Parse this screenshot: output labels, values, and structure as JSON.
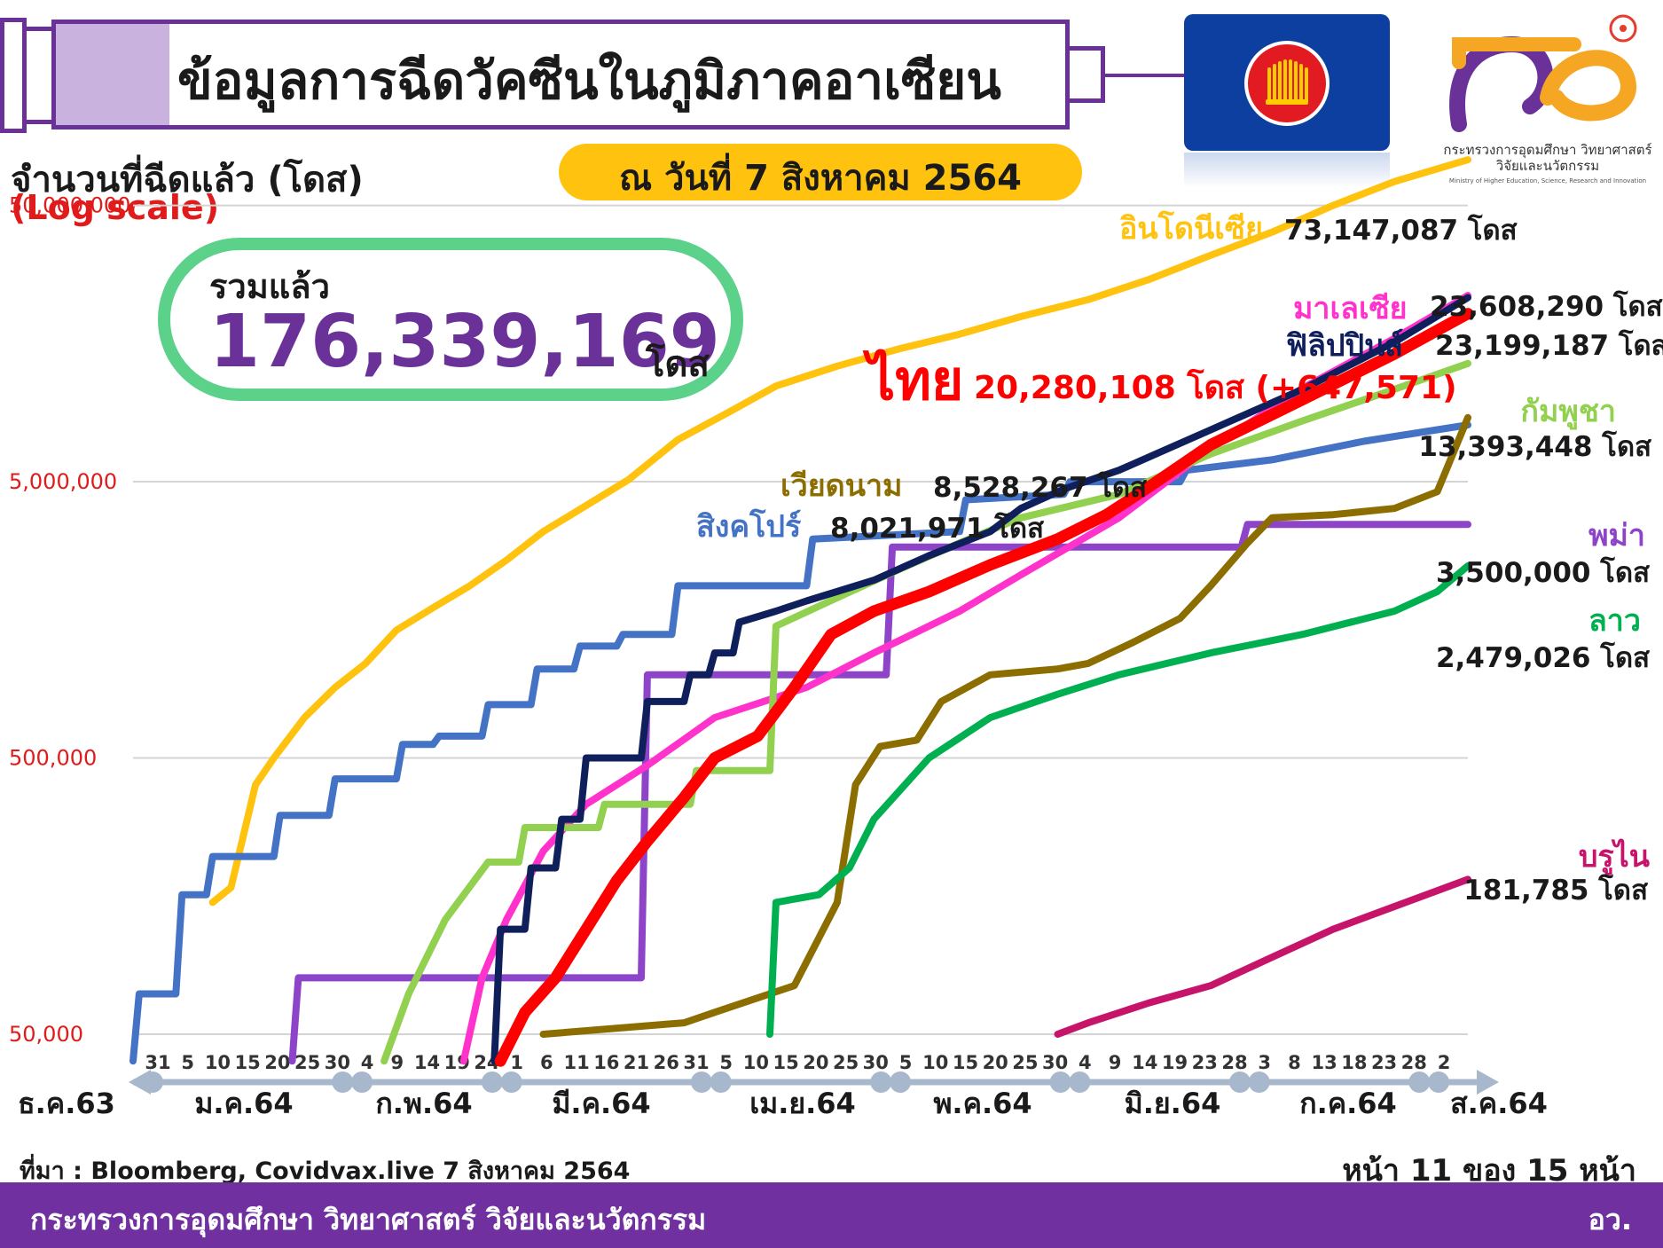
{
  "header": {
    "title": "ข้อมูลการฉีดวัคซีนในภูมิภาคอาเซียน",
    "date": "ณ วันที่ 7 สิงหาคม 2564"
  },
  "logo": {
    "ministry_th": "กระทรวงการอุดมศึกษา วิทยาศาสตร์ วิจัยและนวัตกรรม",
    "ministry_en": "Ministry of Higher Education, Science, Research and Innovation"
  },
  "total": {
    "label": "รวมแล้ว",
    "value": "176,339,169",
    "unit": "โดส"
  },
  "chart_data": {
    "type": "line",
    "ylabel": "จำนวนที่ฉีดแล้ว (โดส)",
    "yscale_label": "(Log scale)",
    "yscale": "log",
    "ylim": [
      50000,
      80000000
    ],
    "yticks": [
      {
        "value": 50000,
        "label": "50,000"
      },
      {
        "value": 500000,
        "label": "500,000"
      },
      {
        "value": 5000000,
        "label": "5,000,000"
      },
      {
        "value": 50000000,
        "label": "50,000,000"
      }
    ],
    "grid": true,
    "x_start": "2020-12-31",
    "x_end": "2021-08-06",
    "x_day_ticks": [
      "31",
      "5",
      "10",
      "15",
      "20",
      "25",
      "30",
      "4",
      "9",
      "14",
      "19",
      "24",
      "1",
      "6",
      "11",
      "16",
      "21",
      "26",
      "31",
      "5",
      "10",
      "15",
      "20",
      "25",
      "30",
      "5",
      "10",
      "15",
      "20",
      "25",
      "30",
      "4",
      "9",
      "14",
      "19",
      "23",
      "28",
      "3",
      "8",
      "13",
      "18",
      "23",
      "28",
      "2"
    ],
    "x_month_labels": [
      "ธ.ค.63",
      "ม.ค.64",
      "ก.พ.64",
      "มี.ค.64",
      "เม.ย.64",
      "พ.ค.64",
      "มิ.ย.64",
      "ก.ค.64",
      "ส.ค.64"
    ],
    "series": [
      {
        "name": "อินโดนีเซีย",
        "value_label": "73,147,087 โดส",
        "color": "#ffc20e",
        "points": [
          [
            "2021-01-13",
            150000
          ],
          [
            "2021-01-16",
            170000
          ],
          [
            "2021-01-20",
            400000
          ],
          [
            "2021-01-23",
            500000
          ],
          [
            "2021-01-28",
            700000
          ],
          [
            "2021-02-02",
            900000
          ],
          [
            "2021-02-07",
            1100000
          ],
          [
            "2021-02-12",
            1450000
          ],
          [
            "2021-02-18",
            1750000
          ],
          [
            "2021-02-24",
            2100000
          ],
          [
            "2021-03-02",
            2600000
          ],
          [
            "2021-03-08",
            3300000
          ],
          [
            "2021-03-15",
            4100000
          ],
          [
            "2021-03-22",
            5100000
          ],
          [
            "2021-03-30",
            7100000
          ],
          [
            "2021-04-08",
            9100000
          ],
          [
            "2021-04-15",
            11100000
          ],
          [
            "2021-04-25",
            13100000
          ],
          [
            "2021-05-05",
            15100000
          ],
          [
            "2021-05-15",
            17100000
          ],
          [
            "2021-05-25",
            19800000
          ],
          [
            "2021-06-05",
            22800000
          ],
          [
            "2021-06-15",
            27000000
          ],
          [
            "2021-06-25",
            33000000
          ],
          [
            "2021-07-05",
            40000000
          ],
          [
            "2021-07-15",
            50000000
          ],
          [
            "2021-07-25",
            61000000
          ],
          [
            "2021-08-06",
            73147087
          ]
        ]
      },
      {
        "name": "สิงคโปร์",
        "value_label": "8,021,971 โดส",
        "color": "#4472c4",
        "points": [
          [
            "2020-12-31",
            40000
          ],
          [
            "2021-01-01",
            70000
          ],
          [
            "2021-01-07",
            70000
          ],
          [
            "2021-01-08",
            160000
          ],
          [
            "2021-01-12",
            160000
          ],
          [
            "2021-01-13",
            220000
          ],
          [
            "2021-01-23",
            220000
          ],
          [
            "2021-01-24",
            310000
          ],
          [
            "2021-02-01",
            310000
          ],
          [
            "2021-02-02",
            420000
          ],
          [
            "2021-02-12",
            420000
          ],
          [
            "2021-02-13",
            560000
          ],
          [
            "2021-02-18",
            560000
          ],
          [
            "2021-02-19",
            600000
          ],
          [
            "2021-02-26",
            600000
          ],
          [
            "2021-02-27",
            780000
          ],
          [
            "2021-03-06",
            780000
          ],
          [
            "2021-03-07",
            1050000
          ],
          [
            "2021-03-13",
            1050000
          ],
          [
            "2021-03-14",
            1270000
          ],
          [
            "2021-03-20",
            1270000
          ],
          [
            "2021-03-21",
            1400000
          ],
          [
            "2021-03-29",
            1400000
          ],
          [
            "2021-03-30",
            2100000
          ],
          [
            "2021-04-20",
            2100000
          ],
          [
            "2021-04-21",
            3100000
          ],
          [
            "2021-05-15",
            3300000
          ],
          [
            "2021-05-16",
            4300000
          ],
          [
            "2021-06-01",
            4500000
          ],
          [
            "2021-06-02",
            5000000
          ],
          [
            "2021-06-20",
            5000000
          ],
          [
            "2021-06-21",
            5500000
          ],
          [
            "2021-07-05",
            6000000
          ],
          [
            "2021-07-20",
            7000000
          ],
          [
            "2021-08-06",
            8021971
          ]
        ]
      },
      {
        "name": "พม่า",
        "value_label": "3,500,000 โดส",
        "color": "#8e44c8",
        "points": [
          [
            "2021-01-26",
            40000
          ],
          [
            "2021-01-27",
            80000
          ],
          [
            "2021-03-24",
            80000
          ],
          [
            "2021-03-25",
            1000000
          ],
          [
            "2021-05-03",
            1000000
          ],
          [
            "2021-05-04",
            2900000
          ],
          [
            "2021-06-30",
            2900000
          ],
          [
            "2021-07-01",
            3500000
          ],
          [
            "2021-08-06",
            3500000
          ]
        ]
      },
      {
        "name": "มาเลเซีย",
        "value_label": "23,608,290 โดส",
        "color": "#ff33cc",
        "points": [
          [
            "2021-02-23",
            40000
          ],
          [
            "2021-02-26",
            80000
          ],
          [
            "2021-03-02",
            130000
          ],
          [
            "2021-03-08",
            230000
          ],
          [
            "2021-03-15",
            340000
          ],
          [
            "2021-03-25",
            470000
          ],
          [
            "2021-04-05",
            700000
          ],
          [
            "2021-04-20",
            900000
          ],
          [
            "2021-05-01",
            1200000
          ],
          [
            "2021-05-15",
            1700000
          ],
          [
            "2021-05-25",
            2300000
          ],
          [
            "2021-06-10",
            3700000
          ],
          [
            "2021-06-25",
            6600000
          ],
          [
            "2021-07-10",
            10900000
          ],
          [
            "2021-07-25",
            16500000
          ],
          [
            "2021-08-06",
            23608290
          ]
        ]
      },
      {
        "name": "กัมพูชา",
        "value_label": "13,393,448 โดส",
        "color": "#92d050",
        "points": [
          [
            "2021-02-10",
            40000
          ],
          [
            "2021-02-14",
            70000
          ],
          [
            "2021-02-20",
            130000
          ],
          [
            "2021-02-27",
            210000
          ],
          [
            "2021-03-04",
            210000
          ],
          [
            "2021-03-05",
            280000
          ],
          [
            "2021-03-17",
            280000
          ],
          [
            "2021-03-18",
            340000
          ],
          [
            "2021-04-01",
            340000
          ],
          [
            "2021-04-02",
            450000
          ],
          [
            "2021-04-14",
            450000
          ],
          [
            "2021-04-15",
            1500000
          ],
          [
            "2021-04-25",
            1900000
          ],
          [
            "2021-05-05",
            2400000
          ],
          [
            "2021-05-15",
            3000000
          ],
          [
            "2021-05-25",
            3700000
          ],
          [
            "2021-06-10",
            4500000
          ],
          [
            "2021-06-25",
            6300000
          ],
          [
            "2021-07-10",
            8300000
          ],
          [
            "2021-07-25",
            10800000
          ],
          [
            "2021-08-06",
            13393448
          ]
        ]
      },
      {
        "name": "ฟิลิปปินส์",
        "value_label": "23,199,187 โดส",
        "color": "#0f1f5c",
        "points": [
          [
            "2021-02-28",
            40000
          ],
          [
            "2021-03-01",
            120000
          ],
          [
            "2021-03-05",
            120000
          ],
          [
            "2021-03-06",
            200000
          ],
          [
            "2021-03-10",
            200000
          ],
          [
            "2021-03-11",
            300000
          ],
          [
            "2021-03-14",
            300000
          ],
          [
            "2021-03-15",
            500000
          ],
          [
            "2021-03-24",
            500000
          ],
          [
            "2021-03-25",
            800000
          ],
          [
            "2021-03-31",
            800000
          ],
          [
            "2021-04-01",
            1000000
          ],
          [
            "2021-04-04",
            1000000
          ],
          [
            "2021-04-05",
            1200000
          ],
          [
            "2021-04-08",
            1200000
          ],
          [
            "2021-04-09",
            1550000
          ],
          [
            "2021-04-15",
            1700000
          ],
          [
            "2021-04-20",
            1850000
          ],
          [
            "2021-05-01",
            2200000
          ],
          [
            "2021-05-10",
            2700000
          ],
          [
            "2021-05-20",
            3300000
          ],
          [
            "2021-05-25",
            4000000
          ],
          [
            "2021-06-01",
            4700000
          ],
          [
            "2021-06-10",
            5500000
          ],
          [
            "2021-06-25",
            7700000
          ],
          [
            "2021-07-10",
            10800000
          ],
          [
            "2021-07-25",
            16000000
          ],
          [
            "2021-08-06",
            23199187
          ]
        ]
      },
      {
        "name": "ไทย",
        "value_label": "20,280,108 โดส (+647,571)",
        "color": "#ff0000",
        "points": [
          [
            "2021-03-01",
            40000
          ],
          [
            "2021-03-05",
            60000
          ],
          [
            "2021-03-10",
            80000
          ],
          [
            "2021-03-15",
            120000
          ],
          [
            "2021-03-20",
            180000
          ],
          [
            "2021-03-25",
            250000
          ],
          [
            "2021-03-31",
            360000
          ],
          [
            "2021-04-05",
            500000
          ],
          [
            "2021-04-12",
            600000
          ],
          [
            "2021-04-18",
            900000
          ],
          [
            "2021-04-24",
            1400000
          ],
          [
            "2021-05-01",
            1700000
          ],
          [
            "2021-05-10",
            2000000
          ],
          [
            "2021-05-20",
            2500000
          ],
          [
            "2021-05-31",
            3100000
          ],
          [
            "2021-06-08",
            3800000
          ],
          [
            "2021-06-15",
            4800000
          ],
          [
            "2021-06-25",
            6800000
          ],
          [
            "2021-07-10",
            9900000
          ],
          [
            "2021-07-25",
            14500000
          ],
          [
            "2021-08-06",
            20280108
          ]
        ]
      },
      {
        "name": "เวียดนาม",
        "value_label": "8,528,267 โดส",
        "color": "#8c6d00",
        "points": [
          [
            "2021-03-08",
            50000
          ],
          [
            "2021-03-31",
            55000
          ],
          [
            "2021-04-05",
            60000
          ],
          [
            "2021-04-18",
            75000
          ],
          [
            "2021-04-25",
            150000
          ],
          [
            "2021-04-28",
            400000
          ],
          [
            "2021-05-02",
            550000
          ],
          [
            "2021-05-08",
            580000
          ],
          [
            "2021-05-12",
            800000
          ],
          [
            "2021-05-20",
            1000000
          ],
          [
            "2021-05-31",
            1050000
          ],
          [
            "2021-06-05",
            1100000
          ],
          [
            "2021-06-12",
            1300000
          ],
          [
            "2021-06-20",
            1600000
          ],
          [
            "2021-06-25",
            2100000
          ],
          [
            "2021-07-01",
            3000000
          ],
          [
            "2021-07-05",
            3700000
          ],
          [
            "2021-07-15",
            3800000
          ],
          [
            "2021-07-25",
            4000000
          ],
          [
            "2021-08-01",
            4600000
          ],
          [
            "2021-08-06",
            8528267
          ]
        ]
      },
      {
        "name": "ลาว",
        "value_label": "2,479,026 โดส",
        "color": "#00b050",
        "points": [
          [
            "2021-04-14",
            50000
          ],
          [
            "2021-04-15",
            150000
          ],
          [
            "2021-04-22",
            160000
          ],
          [
            "2021-04-27",
            200000
          ],
          [
            "2021-05-01",
            300000
          ],
          [
            "2021-05-10",
            500000
          ],
          [
            "2021-05-20",
            700000
          ],
          [
            "2021-05-31",
            850000
          ],
          [
            "2021-06-10",
            1000000
          ],
          [
            "2021-06-25",
            1200000
          ],
          [
            "2021-07-10",
            1400000
          ],
          [
            "2021-07-25",
            1700000
          ],
          [
            "2021-08-01",
            2000000
          ],
          [
            "2021-08-06",
            2479026
          ]
        ]
      },
      {
        "name": "บรูไน",
        "value_label": "181,785 โดส",
        "color": "#c7146b",
        "points": [
          [
            "2021-05-31",
            50000
          ],
          [
            "2021-06-05",
            55000
          ],
          [
            "2021-06-15",
            65000
          ],
          [
            "2021-06-25",
            75000
          ],
          [
            "2021-07-05",
            95000
          ],
          [
            "2021-07-15",
            120000
          ],
          [
            "2021-07-25",
            145000
          ],
          [
            "2021-08-06",
            181785
          ]
        ]
      }
    ]
  },
  "footer": {
    "source": "ที่มา : Bloomberg, Covidvax.live 7 สิงหาคม 2564",
    "page": "หน้า 11 ของ 15 หน้า",
    "ministry": "กระทรวงการอุดมศึกษา วิทยาศาสตร์ วิจัยและนวัตกรรม",
    "abbr": "อว."
  }
}
